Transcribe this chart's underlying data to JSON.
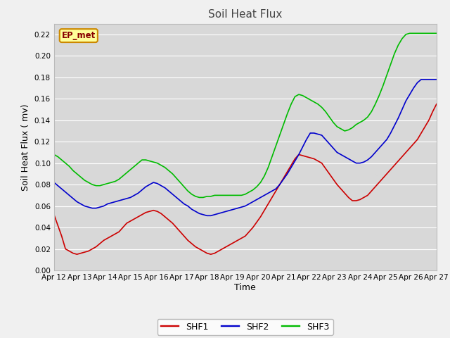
{
  "title": "Soil Heat Flux",
  "xlabel": "Time",
  "ylabel": "Soil Heat Flux ( mv)",
  "ylim": [
    0.0,
    0.23
  ],
  "yticks": [
    0.0,
    0.02,
    0.04,
    0.06,
    0.08,
    0.1,
    0.12,
    0.14,
    0.16,
    0.18,
    0.2,
    0.22
  ],
  "xtick_labels": [
    "Apr 12",
    "Apr 13",
    "Apr 14",
    "Apr 15",
    "Apr 16",
    "Apr 17",
    "Apr 18",
    "Apr 19",
    "Apr 20",
    "Apr 21",
    "Apr 22",
    "Apr 23",
    "Apr 24",
    "Apr 25",
    "Apr 26",
    "Apr 27"
  ],
  "fig_bg_color": "#f0f0f0",
  "plot_bg_color": "#d8d8d8",
  "grid_color": "#ffffff",
  "line_colors": [
    "#cc0000",
    "#0000cc",
    "#00bb00"
  ],
  "line_width": 1.2,
  "legend_labels": [
    "SHF1",
    "SHF2",
    "SHF3"
  ],
  "annotation_text": "EP_met",
  "annotation_box_color": "#ffff99",
  "annotation_box_edge": "#cc8800",
  "title_color": "#444444",
  "shf1": [
    0.052,
    0.042,
    0.032,
    0.02,
    0.018,
    0.016,
    0.015,
    0.016,
    0.017,
    0.018,
    0.02,
    0.022,
    0.025,
    0.028,
    0.03,
    0.032,
    0.034,
    0.036,
    0.04,
    0.044,
    0.046,
    0.048,
    0.05,
    0.052,
    0.054,
    0.055,
    0.056,
    0.055,
    0.053,
    0.05,
    0.047,
    0.044,
    0.04,
    0.036,
    0.032,
    0.028,
    0.025,
    0.022,
    0.02,
    0.018,
    0.016,
    0.015,
    0.016,
    0.018,
    0.02,
    0.022,
    0.024,
    0.026,
    0.028,
    0.03,
    0.032,
    0.036,
    0.04,
    0.045,
    0.05,
    0.056,
    0.062,
    0.068,
    0.074,
    0.08,
    0.086,
    0.092,
    0.098,
    0.104,
    0.108,
    0.107,
    0.106,
    0.105,
    0.104,
    0.102,
    0.1,
    0.095,
    0.09,
    0.085,
    0.08,
    0.076,
    0.072,
    0.068,
    0.065,
    0.065,
    0.066,
    0.068,
    0.07,
    0.074,
    0.078,
    0.082,
    0.086,
    0.09,
    0.094,
    0.098,
    0.102,
    0.106,
    0.11,
    0.114,
    0.118,
    0.122,
    0.128,
    0.134,
    0.14,
    0.148,
    0.155
  ],
  "shf2": [
    0.082,
    0.079,
    0.076,
    0.073,
    0.07,
    0.067,
    0.064,
    0.062,
    0.06,
    0.059,
    0.058,
    0.058,
    0.059,
    0.06,
    0.062,
    0.063,
    0.064,
    0.065,
    0.066,
    0.067,
    0.068,
    0.07,
    0.072,
    0.075,
    0.078,
    0.08,
    0.082,
    0.081,
    0.079,
    0.077,
    0.074,
    0.071,
    0.068,
    0.065,
    0.062,
    0.06,
    0.057,
    0.055,
    0.053,
    0.052,
    0.051,
    0.051,
    0.052,
    0.053,
    0.054,
    0.055,
    0.056,
    0.057,
    0.058,
    0.059,
    0.06,
    0.062,
    0.064,
    0.066,
    0.068,
    0.07,
    0.072,
    0.074,
    0.076,
    0.08,
    0.085,
    0.09,
    0.096,
    0.102,
    0.108,
    0.115,
    0.122,
    0.128,
    0.128,
    0.127,
    0.126,
    0.122,
    0.118,
    0.114,
    0.11,
    0.108,
    0.106,
    0.104,
    0.102,
    0.1,
    0.1,
    0.101,
    0.103,
    0.106,
    0.11,
    0.114,
    0.118,
    0.122,
    0.128,
    0.135,
    0.142,
    0.15,
    0.158,
    0.164,
    0.17,
    0.175,
    0.178,
    0.178,
    0.178,
    0.178,
    0.178
  ],
  "shf3": [
    0.108,
    0.106,
    0.103,
    0.1,
    0.097,
    0.093,
    0.09,
    0.087,
    0.084,
    0.082,
    0.08,
    0.079,
    0.079,
    0.08,
    0.081,
    0.082,
    0.083,
    0.085,
    0.088,
    0.091,
    0.094,
    0.097,
    0.1,
    0.103,
    0.103,
    0.102,
    0.101,
    0.1,
    0.098,
    0.096,
    0.093,
    0.09,
    0.086,
    0.082,
    0.078,
    0.074,
    0.071,
    0.069,
    0.068,
    0.068,
    0.069,
    0.069,
    0.07,
    0.07,
    0.07,
    0.07,
    0.07,
    0.07,
    0.07,
    0.07,
    0.071,
    0.073,
    0.075,
    0.078,
    0.082,
    0.088,
    0.096,
    0.106,
    0.116,
    0.126,
    0.136,
    0.146,
    0.155,
    0.162,
    0.164,
    0.163,
    0.161,
    0.159,
    0.157,
    0.155,
    0.152,
    0.148,
    0.143,
    0.138,
    0.134,
    0.132,
    0.13,
    0.131,
    0.133,
    0.136,
    0.138,
    0.14,
    0.143,
    0.148,
    0.155,
    0.163,
    0.172,
    0.182,
    0.192,
    0.202,
    0.21,
    0.216,
    0.22,
    0.221,
    0.221,
    0.221,
    0.221,
    0.221,
    0.221,
    0.221,
    0.221
  ]
}
